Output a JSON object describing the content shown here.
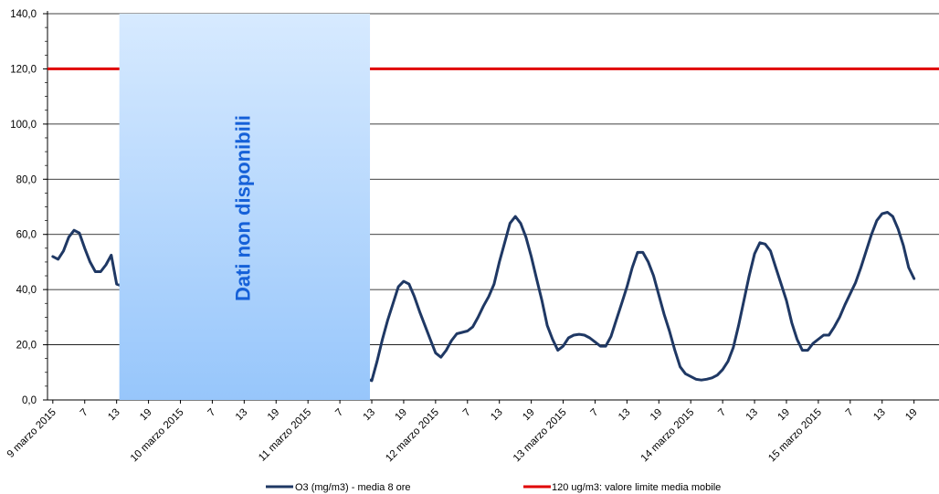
{
  "colors": {
    "series_o3": "#1f3864",
    "limit": "#e00000",
    "overlay_top": "#d7eaff",
    "overlay_bottom": "#97c6fb",
    "overlay_text": "#1560d8",
    "grid": "#000000"
  },
  "chart_data": {
    "type": "line",
    "ylim": [
      0,
      140
    ],
    "y_ticks": [
      "0,0",
      "20,0",
      "40,0",
      "60,0",
      "80,0",
      "100,0",
      "120,0",
      "140,0"
    ],
    "y_tick_values": [
      0,
      20,
      40,
      60,
      80,
      100,
      120,
      140
    ],
    "grid": "horizontal",
    "legend_position": "bottom",
    "x_tick_labels": [
      "9 marzo 2015",
      "7",
      "13",
      "19",
      "10 marzo 2015",
      "7",
      "13",
      "19",
      "11 marzo 2015",
      "7",
      "13",
      "19",
      "12 marzo 2015",
      "7",
      "13",
      "19",
      "13 marzo 2015",
      "7",
      "13",
      "19",
      "14 marzo 2015",
      "7",
      "13",
      "19",
      "15 marzo 2015",
      "7",
      "13",
      "19"
    ],
    "x_range_hours": [
      0,
      168
    ],
    "missing_data": {
      "label": "Dati non disponibili",
      "from_hour": 13,
      "to_hour": 61
    },
    "series": [
      {
        "name": "O3 (mg/m3) - media 8 ore",
        "points": [
          [
            1,
            52
          ],
          [
            2,
            51
          ],
          [
            3,
            54
          ],
          [
            4,
            59
          ],
          [
            5,
            61.5
          ],
          [
            6,
            60.5
          ],
          [
            7,
            55
          ],
          [
            8,
            50
          ],
          [
            9,
            46.5
          ],
          [
            10,
            46.5
          ],
          [
            11,
            49
          ],
          [
            12,
            52.5
          ],
          [
            13,
            42
          ],
          [
            61,
            7
          ],
          [
            62,
            14
          ],
          [
            63,
            22
          ],
          [
            64,
            29
          ],
          [
            65,
            35
          ],
          [
            66,
            41
          ],
          [
            67,
            43
          ],
          [
            68,
            42
          ],
          [
            69,
            37.5
          ],
          [
            70,
            32
          ],
          [
            71,
            27
          ],
          [
            72,
            22
          ],
          [
            73,
            17
          ],
          [
            74,
            15.5
          ],
          [
            75,
            18
          ],
          [
            76,
            21.5
          ],
          [
            77,
            24
          ],
          [
            78,
            24.5
          ],
          [
            79,
            25
          ],
          [
            80,
            26.5
          ],
          [
            81,
            30
          ],
          [
            82,
            34
          ],
          [
            83,
            37.5
          ],
          [
            84,
            42
          ],
          [
            85,
            50
          ],
          [
            86,
            57
          ],
          [
            87,
            64
          ],
          [
            88,
            66.5
          ],
          [
            89,
            64
          ],
          [
            90,
            59
          ],
          [
            91,
            52
          ],
          [
            92,
            44
          ],
          [
            93,
            36
          ],
          [
            94,
            27
          ],
          [
            95,
            22
          ],
          [
            96,
            18
          ],
          [
            97,
            19.5
          ],
          [
            98,
            22.5
          ],
          [
            99,
            23.5
          ],
          [
            100,
            23.8
          ],
          [
            101,
            23.5
          ],
          [
            102,
            22.5
          ],
          [
            103,
            21
          ],
          [
            104,
            19.5
          ],
          [
            105,
            19.5
          ],
          [
            106,
            23
          ],
          [
            107,
            29
          ],
          [
            108,
            35
          ],
          [
            109,
            41
          ],
          [
            110,
            48
          ],
          [
            111,
            53.5
          ],
          [
            112,
            53.5
          ],
          [
            113,
            50
          ],
          [
            114,
            45
          ],
          [
            115,
            38
          ],
          [
            116,
            31
          ],
          [
            117,
            25
          ],
          [
            118,
            18
          ],
          [
            119,
            12
          ],
          [
            120,
            9.5
          ],
          [
            121,
            8.5
          ],
          [
            122,
            7.5
          ],
          [
            123,
            7.2
          ],
          [
            124,
            7.5
          ],
          [
            125,
            8
          ],
          [
            126,
            9
          ],
          [
            127,
            11
          ],
          [
            128,
            14
          ],
          [
            129,
            19
          ],
          [
            130,
            27
          ],
          [
            131,
            36
          ],
          [
            132,
            45
          ],
          [
            133,
            53
          ],
          [
            134,
            57
          ],
          [
            135,
            56.5
          ],
          [
            136,
            54
          ],
          [
            137,
            48
          ],
          [
            138,
            42
          ],
          [
            139,
            36
          ],
          [
            140,
            28
          ],
          [
            141,
            22
          ],
          [
            142,
            18
          ],
          [
            143,
            18
          ],
          [
            144,
            20.5
          ],
          [
            145,
            22
          ],
          [
            146,
            23.5
          ],
          [
            147,
            23.5
          ],
          [
            148,
            26.5
          ],
          [
            149,
            30
          ],
          [
            150,
            34.5
          ],
          [
            151,
            38.5
          ],
          [
            152,
            42.5
          ],
          [
            153,
            48
          ],
          [
            154,
            54
          ],
          [
            155,
            60
          ],
          [
            156,
            65
          ],
          [
            157,
            67.5
          ],
          [
            158,
            68
          ],
          [
            159,
            66.5
          ],
          [
            160,
            62
          ],
          [
            161,
            56
          ],
          [
            162,
            48
          ],
          [
            163,
            44
          ]
        ]
      },
      {
        "name": "120 ug/m3: valore limite media mobile",
        "constant": 120
      }
    ]
  },
  "legend": {
    "items": [
      {
        "label": "O3 (mg/m3) - media 8 ore"
      },
      {
        "label": "120 ug/m3: valore limite media mobile"
      }
    ]
  }
}
